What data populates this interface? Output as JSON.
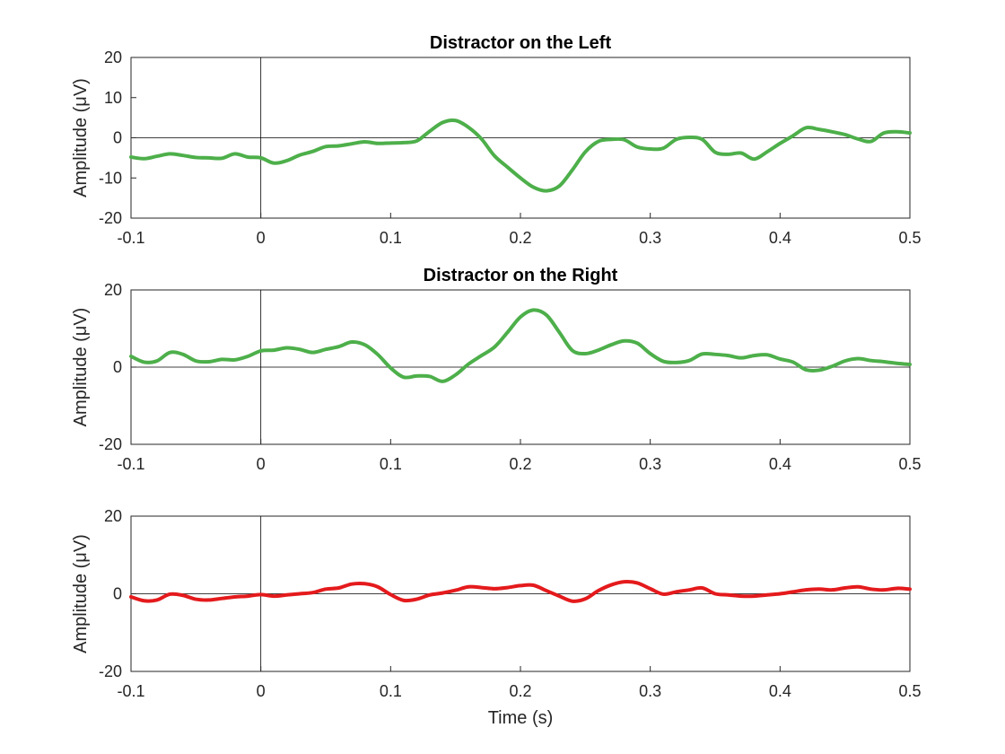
{
  "chart_data": [
    {
      "type": "line",
      "title": "Distractor on the Left",
      "ylabel": "Amplitude (μV)",
      "xlabel": "",
      "xlim": [
        -0.1,
        0.5
      ],
      "ylim": [
        -20,
        20
      ],
      "xticks": [
        "-0.1",
        "0",
        "0.1",
        "0.2",
        "0.3",
        "0.4",
        "0.5"
      ],
      "yticks": [
        "20",
        "10",
        "0",
        "-10",
        "-20"
      ],
      "color": "#4daf4a",
      "series": [
        {
          "x": [
            -0.1,
            -0.09,
            -0.08,
            -0.07,
            -0.06,
            -0.05,
            -0.04,
            -0.03,
            -0.02,
            -0.01,
            0.0,
            0.01,
            0.02,
            0.03,
            0.04,
            0.05,
            0.06,
            0.07,
            0.08,
            0.09,
            0.1,
            0.11,
            0.12,
            0.13,
            0.14,
            0.15,
            0.16,
            0.17,
            0.18,
            0.19,
            0.2,
            0.21,
            0.22,
            0.23,
            0.24,
            0.25,
            0.26,
            0.27,
            0.28,
            0.29,
            0.3,
            0.31,
            0.32,
            0.33,
            0.34,
            0.35,
            0.36,
            0.37,
            0.38,
            0.39,
            0.4,
            0.41,
            0.42,
            0.43,
            0.44,
            0.45,
            0.46,
            0.47,
            0.48,
            0.49,
            0.5
          ],
          "y": [
            -4.8,
            -5.2,
            -4.6,
            -4.0,
            -4.4,
            -4.9,
            -5.0,
            -5.1,
            -4.0,
            -4.8,
            -5.0,
            -6.3,
            -5.7,
            -4.3,
            -3.4,
            -2.2,
            -2.0,
            -1.5,
            -1.0,
            -1.4,
            -1.3,
            -1.2,
            -0.8,
            1.6,
            3.8,
            4.3,
            2.6,
            -0.3,
            -4.5,
            -7.3,
            -10.0,
            -12.3,
            -13.2,
            -12.0,
            -8.0,
            -3.5,
            -0.9,
            -0.4,
            -0.5,
            -2.3,
            -2.8,
            -2.6,
            -0.4,
            0.1,
            -0.4,
            -3.6,
            -4.1,
            -3.8,
            -5.3,
            -3.5,
            -1.4,
            0.5,
            2.5,
            2.1,
            1.5,
            0.8,
            -0.3,
            -0.9,
            1.2,
            1.5,
            1.2
          ]
        }
      ]
    },
    {
      "type": "line",
      "title": "Distractor on the Right",
      "ylabel": "Amplitude (μV)",
      "xlabel": "",
      "xlim": [
        -0.1,
        0.5
      ],
      "ylim": [
        -20,
        20
      ],
      "xticks": [
        "-0.1",
        "0",
        "0.1",
        "0.2",
        "0.3",
        "0.4",
        "0.5"
      ],
      "yticks": [
        "20",
        "0",
        "-20"
      ],
      "color": "#4daf4a",
      "series": [
        {
          "x": [
            -0.1,
            -0.09,
            -0.08,
            -0.07,
            -0.06,
            -0.05,
            -0.04,
            -0.03,
            -0.02,
            -0.01,
            0.0,
            0.01,
            0.02,
            0.03,
            0.04,
            0.05,
            0.06,
            0.07,
            0.08,
            0.09,
            0.1,
            0.11,
            0.12,
            0.13,
            0.14,
            0.15,
            0.16,
            0.17,
            0.18,
            0.19,
            0.2,
            0.21,
            0.22,
            0.23,
            0.24,
            0.25,
            0.26,
            0.27,
            0.28,
            0.29,
            0.3,
            0.31,
            0.32,
            0.33,
            0.34,
            0.35,
            0.36,
            0.37,
            0.38,
            0.39,
            0.4,
            0.41,
            0.42,
            0.43,
            0.44,
            0.45,
            0.46,
            0.47,
            0.48,
            0.49,
            0.5
          ],
          "y": [
            2.8,
            1.3,
            1.6,
            3.8,
            3.3,
            1.6,
            1.4,
            2.0,
            1.9,
            2.8,
            4.2,
            4.4,
            5.0,
            4.6,
            3.8,
            4.6,
            5.3,
            6.5,
            5.8,
            3.3,
            -0.2,
            -2.6,
            -2.3,
            -2.4,
            -3.7,
            -2.0,
            0.8,
            3.0,
            5.2,
            9.0,
            13.0,
            14.8,
            13.5,
            9.0,
            4.3,
            3.5,
            4.4,
            5.8,
            6.8,
            6.2,
            3.5,
            1.5,
            1.2,
            1.7,
            3.4,
            3.3,
            3.0,
            2.4,
            3.0,
            3.2,
            2.1,
            1.3,
            -0.7,
            -0.8,
            0.2,
            1.6,
            2.2,
            1.7,
            1.4,
            1.0,
            0.7
          ]
        }
      ]
    },
    {
      "type": "line",
      "title": "",
      "ylabel": "Amplitude (μV)",
      "xlabel": "Time (s)",
      "xlim": [
        -0.1,
        0.5
      ],
      "ylim": [
        -20,
        20
      ],
      "xticks": [
        "-0.1",
        "0",
        "0.1",
        "0.2",
        "0.3",
        "0.4",
        "0.5"
      ],
      "yticks": [
        "20",
        "0",
        "-20"
      ],
      "color": "#e41a1c",
      "series": [
        {
          "x": [
            -0.1,
            -0.09,
            -0.08,
            -0.07,
            -0.06,
            -0.05,
            -0.04,
            -0.03,
            -0.02,
            -0.01,
            0.0,
            0.01,
            0.02,
            0.03,
            0.04,
            0.05,
            0.06,
            0.07,
            0.08,
            0.09,
            0.1,
            0.11,
            0.12,
            0.13,
            0.14,
            0.15,
            0.16,
            0.17,
            0.18,
            0.19,
            0.2,
            0.21,
            0.22,
            0.23,
            0.24,
            0.25,
            0.26,
            0.27,
            0.28,
            0.29,
            0.3,
            0.31,
            0.32,
            0.33,
            0.34,
            0.35,
            0.36,
            0.37,
            0.38,
            0.39,
            0.4,
            0.41,
            0.42,
            0.43,
            0.44,
            0.45,
            0.46,
            0.47,
            0.48,
            0.49,
            0.5
          ],
          "y": [
            -0.8,
            -1.8,
            -1.6,
            -0.1,
            -0.4,
            -1.4,
            -1.6,
            -1.2,
            -0.8,
            -0.6,
            -0.2,
            -0.6,
            -0.3,
            0.0,
            0.3,
            1.2,
            1.5,
            2.5,
            2.6,
            1.8,
            -0.2,
            -1.7,
            -1.4,
            -0.3,
            0.2,
            0.9,
            1.8,
            1.6,
            1.3,
            1.6,
            2.1,
            2.2,
            0.8,
            -0.6,
            -1.9,
            -1.3,
            0.8,
            2.3,
            3.1,
            2.8,
            1.3,
            -0.1,
            0.5,
            1.0,
            1.5,
            0.0,
            -0.3,
            -0.6,
            -0.6,
            -0.3,
            0.0,
            0.5,
            1.0,
            1.2,
            1.0,
            1.5,
            1.8,
            1.2,
            1.0,
            1.4,
            1.2
          ]
        }
      ]
    }
  ]
}
